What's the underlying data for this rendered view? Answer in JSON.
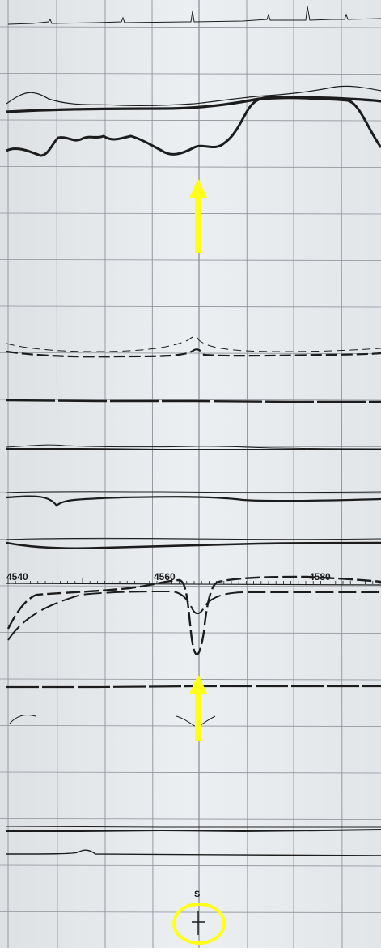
{
  "photo": {
    "subject": "multichannel chart recorder strip",
    "colors": {
      "paper": "#eceff2",
      "grid": "#8e9298",
      "ink": "#1c1c1c",
      "marker": "#ffff1a"
    }
  },
  "scale_labels": [
    "4540",
    "4560",
    "4580"
  ],
  "event_label": "S",
  "annotations": {
    "arrows": [
      "upward-arrow",
      "upward-arrow"
    ],
    "circle": "highlight-circle"
  }
}
